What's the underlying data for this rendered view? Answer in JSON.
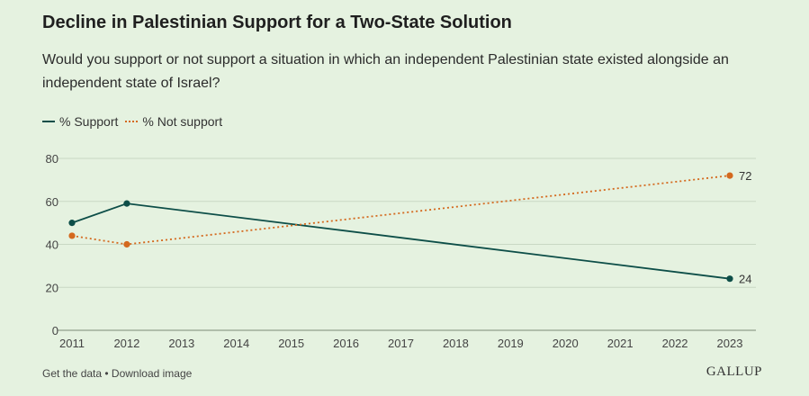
{
  "chart_data": {
    "type": "line",
    "title": "Decline in Palestinian Support for a Two-State Solution",
    "subtitle": "Would you support or not support a situation in which an independent Palestinian state existed alongside an independent state of Israel?",
    "xlabel": "",
    "ylabel": "",
    "x_ticks": [
      "2011",
      "2012",
      "2013",
      "2014",
      "2015",
      "2016",
      "2017",
      "2018",
      "2019",
      "2020",
      "2021",
      "2022",
      "2023"
    ],
    "xlim": [
      2011,
      2023
    ],
    "y_ticks": [
      0,
      20,
      40,
      60,
      80
    ],
    "ylim": [
      0,
      80
    ],
    "grid": true,
    "legend_position": "top-left",
    "series": [
      {
        "name": "% Support",
        "color": "#0d4e48",
        "style": "solid",
        "points": [
          {
            "x": 2011,
            "y": 50
          },
          {
            "x": 2012,
            "y": 59
          },
          {
            "x": 2023,
            "y": 24
          }
        ],
        "end_label": "24"
      },
      {
        "name": "% Not support",
        "color": "#d4691e",
        "style": "dotted",
        "points": [
          {
            "x": 2011,
            "y": 44
          },
          {
            "x": 2012,
            "y": 40
          },
          {
            "x": 2023,
            "y": 72
          }
        ],
        "end_label": "72"
      }
    ]
  },
  "footer": {
    "get_data": "Get the data",
    "separator": " • ",
    "download": "Download image"
  },
  "brand": "GALLUP"
}
